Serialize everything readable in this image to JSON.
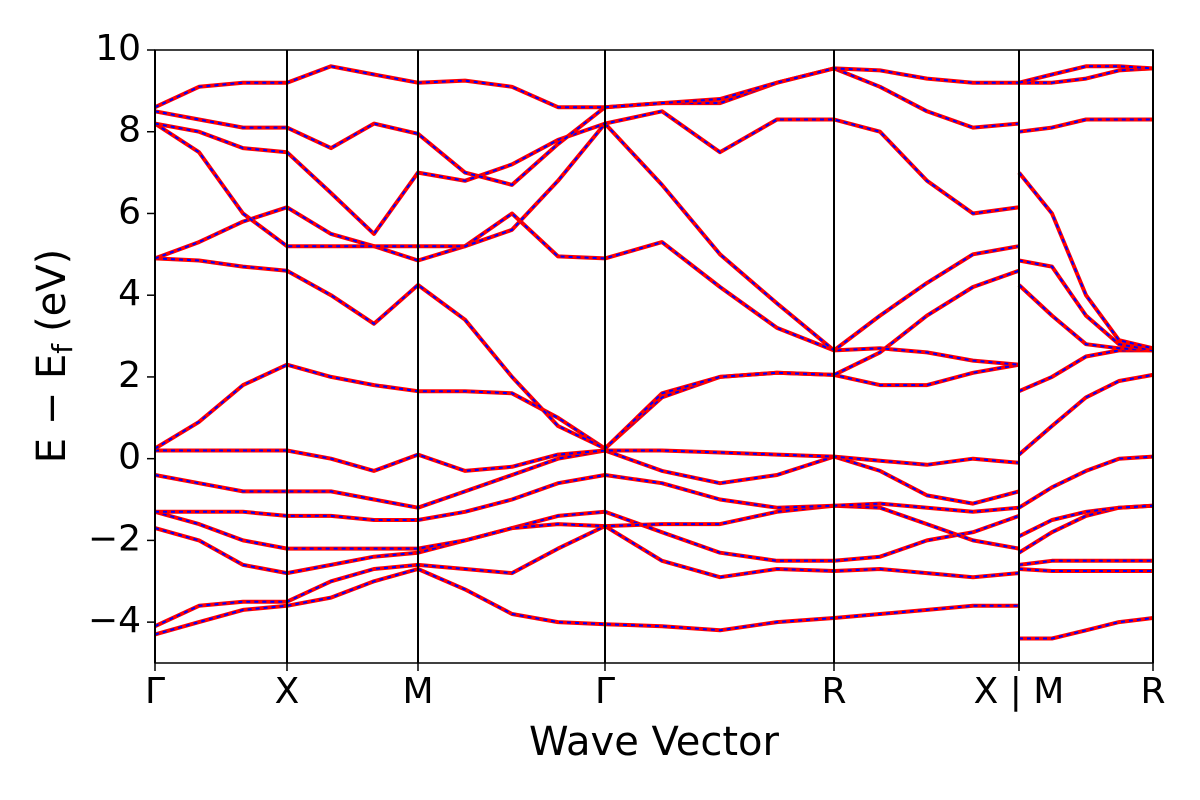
{
  "chart_data": {
    "type": "line",
    "x_label": "Wave Vector",
    "y_label": {
      "main": "E − E",
      "sub": "f",
      "unit": "(eV)"
    },
    "xlim": [
      0,
      9.98
    ],
    "ylim": [
      -5,
      10
    ],
    "xticks": [
      {
        "value": 0,
        "label": "Γ"
      },
      {
        "value": 1.32,
        "label": "X"
      },
      {
        "value": 2.63,
        "label": "M"
      },
      {
        "value": 4.5,
        "label": "Γ"
      },
      {
        "value": 6.79,
        "label": "R"
      },
      {
        "value": 8.64,
        "label": "X | M"
      },
      {
        "value": 9.98,
        "label": "R"
      }
    ],
    "yticks": [
      {
        "value": -4,
        "label": "−4"
      },
      {
        "value": -2,
        "label": "−2"
      },
      0,
      2,
      4,
      6,
      8,
      10
    ],
    "symmetry_lines": true,
    "overlay_color": "#0000ff",
    "x": [
      0,
      0.44,
      0.88,
      1.32,
      1.76,
      2.19,
      2.63,
      3.1,
      3.57,
      4.03,
      4.5,
      5.07,
      5.65,
      6.22,
      6.79,
      7.25,
      7.72,
      8.18,
      8.64,
      8.64,
      8.64,
      8.97,
      9.31,
      9.64,
      9.98
    ],
    "series": [
      {
        "color": "#ff0000",
        "values": [
          -4.3,
          -4.0,
          -3.7,
          -3.6,
          -3.4,
          -3.0,
          -2.7,
          -3.2,
          -3.8,
          -4.0,
          -4.05,
          -4.1,
          -4.2,
          -4.0,
          -3.9,
          -3.8,
          -3.7,
          -3.6,
          -3.6,
          null,
          -4.4,
          -4.4,
          -4.2,
          -4.0,
          -3.9
        ]
      },
      {
        "color": "#ff0000",
        "values": [
          -4.1,
          -3.6,
          -3.5,
          -3.5,
          -3.0,
          -2.7,
          -2.6,
          -2.7,
          -2.8,
          -2.2,
          -1.65,
          -2.5,
          -2.9,
          -2.7,
          -2.75,
          -2.7,
          -2.8,
          -2.9,
          -2.8,
          null,
          -2.7,
          -2.75,
          -2.75,
          -2.75,
          -2.75
        ]
      },
      {
        "color": "#ff0000",
        "values": [
          -1.7,
          -2.0,
          -2.6,
          -2.8,
          -2.6,
          -2.4,
          -2.3,
          -2.0,
          -1.7,
          -1.4,
          -1.3,
          -1.8,
          -2.3,
          -2.5,
          -2.5,
          -2.4,
          -2.0,
          -1.8,
          -1.4,
          null,
          -2.6,
          -2.5,
          -2.5,
          -2.5,
          -2.5
        ]
      },
      {
        "color": "#ff0000",
        "values": [
          -1.3,
          -1.6,
          -2.0,
          -2.2,
          -2.2,
          -2.2,
          -2.2,
          -2.0,
          -1.7,
          -1.6,
          -1.65,
          -1.6,
          -1.6,
          -1.3,
          -1.15,
          -1.2,
          -1.6,
          -2.0,
          -2.2,
          null,
          -2.3,
          -1.8,
          -1.4,
          -1.2,
          -1.15
        ]
      },
      {
        "color": "#ff0000",
        "values": [
          -1.3,
          -1.3,
          -1.3,
          -1.4,
          -1.4,
          -1.5,
          -1.5,
          -1.3,
          -1.0,
          -0.6,
          -0.4,
          -0.6,
          -1.0,
          -1.2,
          -1.15,
          -1.1,
          -1.2,
          -1.3,
          -1.2,
          null,
          -1.9,
          -1.5,
          -1.3,
          -1.2,
          -1.15
        ]
      },
      {
        "color": "#ff0000",
        "values": [
          -0.4,
          -0.6,
          -0.8,
          -0.8,
          -0.8,
          -1.0,
          -1.2,
          -0.8,
          -0.4,
          0.0,
          0.2,
          -0.3,
          -0.6,
          -0.4,
          0.05,
          -0.3,
          -0.9,
          -1.1,
          -0.8,
          null,
          -1.2,
          -0.7,
          -0.3,
          0.0,
          0.05
        ]
      },
      {
        "color": "#ff0000",
        "values": [
          0.2,
          0.2,
          0.2,
          0.2,
          0.0,
          -0.3,
          0.1,
          -0.3,
          -0.2,
          0.1,
          0.2,
          0.2,
          0.15,
          0.1,
          0.05,
          -0.05,
          -0.15,
          0.0,
          -0.1,
          null,
          0.1,
          0.8,
          1.5,
          1.9,
          2.05
        ]
      },
      {
        "color": "#ff0000",
        "values": [
          0.25,
          0.9,
          1.8,
          2.3,
          2.0,
          1.8,
          1.65,
          1.65,
          1.6,
          1.0,
          0.25,
          1.5,
          2.0,
          2.1,
          2.05,
          1.8,
          1.8,
          2.1,
          2.3,
          null,
          1.65,
          2.0,
          2.5,
          2.65,
          2.65
        ]
      },
      {
        "color": "#ff0000",
        "values": [
          4.9,
          4.85,
          4.7,
          4.6,
          4.0,
          3.3,
          4.25,
          3.4,
          2.0,
          0.8,
          0.25,
          1.6,
          2.0,
          2.1,
          2.05,
          2.6,
          3.5,
          4.2,
          4.6,
          null,
          4.25,
          3.5,
          2.8,
          2.7,
          2.65
        ]
      },
      {
        "color": "#ff0000",
        "values": [
          4.9,
          5.3,
          5.8,
          6.15,
          5.5,
          5.2,
          4.85,
          5.2,
          6.0,
          4.95,
          4.9,
          5.3,
          4.2,
          3.2,
          2.65,
          2.7,
          2.6,
          2.4,
          2.3,
          null,
          4.85,
          4.7,
          3.5,
          2.8,
          2.65
        ]
      },
      {
        "color": "#ff0000",
        "values": [
          8.2,
          7.5,
          6.0,
          5.2,
          5.2,
          5.2,
          5.2,
          5.2,
          5.6,
          6.8,
          8.2,
          6.7,
          5.0,
          3.8,
          2.65,
          3.5,
          4.3,
          5.0,
          5.2,
          null,
          7.0,
          6.0,
          4.0,
          2.9,
          2.7
        ]
      },
      {
        "color": "#ff0000",
        "values": [
          8.2,
          8.0,
          7.6,
          7.5,
          6.5,
          5.5,
          7.0,
          6.8,
          7.2,
          7.8,
          8.2,
          8.5,
          7.5,
          8.3,
          8.3,
          8.0,
          6.8,
          6.0,
          6.15,
          null,
          8.0,
          8.1,
          8.3,
          8.3,
          8.3
        ]
      },
      {
        "color": "#ff0000",
        "values": [
          8.5,
          8.3,
          8.1,
          8.1,
          7.6,
          8.2,
          7.95,
          7.0,
          6.7,
          7.7,
          8.6,
          8.7,
          8.7,
          9.2,
          9.55,
          9.1,
          8.5,
          8.1,
          8.2,
          null,
          9.2,
          9.2,
          9.3,
          9.5,
          9.55
        ]
      },
      {
        "color": "#ff0000",
        "values": [
          8.6,
          9.1,
          9.2,
          9.2,
          9.6,
          9.4,
          9.2,
          9.25,
          9.1,
          8.6,
          8.6,
          8.7,
          8.8,
          9.2,
          9.55,
          9.5,
          9.3,
          9.2,
          9.2,
          null,
          9.2,
          9.4,
          9.6,
          9.6,
          9.55
        ]
      }
    ]
  }
}
